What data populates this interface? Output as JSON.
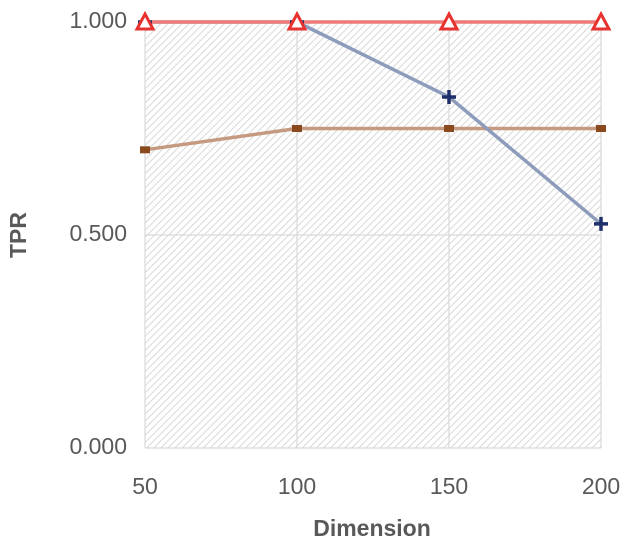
{
  "chart_data": {
    "type": "line",
    "x_label": "Dimension",
    "y_label": "TPR",
    "x": [
      50,
      100,
      150,
      200
    ],
    "xlim": [
      50,
      200
    ],
    "xticks": [
      50,
      100,
      150,
      200
    ],
    "ylim": [
      0,
      1
    ],
    "yticks": [
      {
        "value": 0,
        "label": "0.000"
      },
      {
        "value": 0.5,
        "label": "0.500"
      },
      {
        "value": 1,
        "label": "1.000"
      }
    ],
    "grid": true,
    "series": [
      {
        "color": "#c59a80",
        "marker": "square",
        "marker_color": "#8b4a1e",
        "values": [
          0.7,
          0.75,
          0.75,
          0.75
        ]
      },
      {
        "color": "#8e9cbb",
        "marker": "plus",
        "marker_color": "#1f2f6b",
        "values": [
          1,
          1,
          0.824,
          0.526
        ]
      },
      {
        "color": "#ee7b78",
        "marker": "triangle",
        "marker_color": "#e8322f",
        "values": [
          1,
          1,
          1,
          1
        ]
      }
    ]
  }
}
